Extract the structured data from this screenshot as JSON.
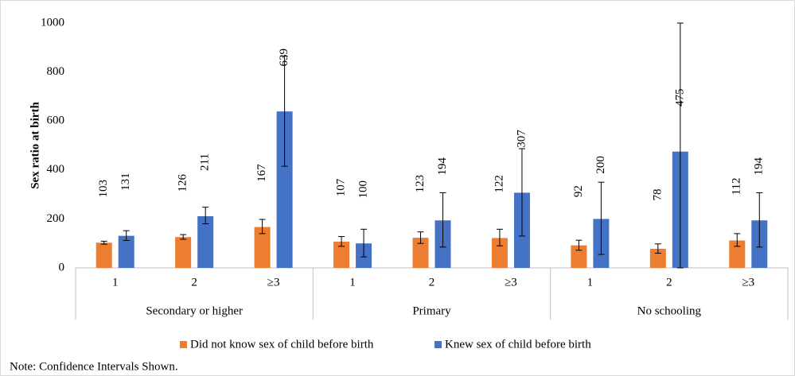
{
  "chart_data": {
    "type": "bar",
    "y_label": "Sex ratio at birth",
    "note": "Note: Confidence Intervals Shown.",
    "groups": [
      {
        "name": "Secondary or higher",
        "categories": [
          "1",
          "2",
          "≥3"
        ]
      },
      {
        "name": "Primary",
        "categories": [
          "1",
          "2",
          "≥3"
        ]
      },
      {
        "name": "No schooling",
        "categories": [
          "1",
          "2",
          "≥3"
        ]
      }
    ],
    "series": [
      {
        "name": "Did not know sex of child before birth",
        "color": "#ed7d31",
        "values": [
          103,
          126,
          167,
          107,
          123,
          122,
          92,
          78,
          112
        ],
        "ci_low": [
          97,
          117,
          140,
          88,
          100,
          90,
          72,
          60,
          88
        ],
        "ci_high": [
          109,
          136,
          198,
          128,
          147,
          158,
          113,
          98,
          140
        ]
      },
      {
        "name": "Knew sex of child before birth",
        "color": "#4472c4",
        "values": [
          131,
          211,
          639,
          100,
          194,
          307,
          200,
          475,
          194
        ],
        "ci_low": [
          112,
          180,
          415,
          45,
          85,
          130,
          55,
          0,
          85
        ],
        "ci_high": [
          152,
          248,
          865,
          158,
          307,
          487,
          350,
          1000,
          307
        ]
      }
    ],
    "ylim": [
      0,
      1000
    ],
    "yticks": [
      0,
      200,
      400,
      600,
      800,
      1000
    ],
    "grid": false
  }
}
